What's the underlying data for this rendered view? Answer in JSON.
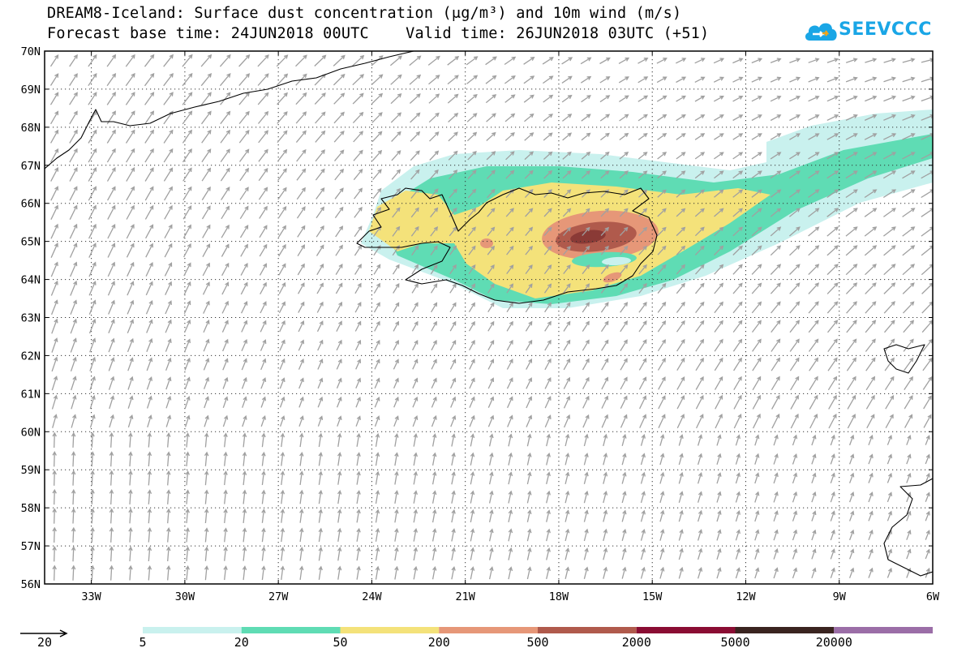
{
  "header": {
    "title_line1": "DREAM8-Iceland: Surface dust concentration (μg/m³) and 10m wind (m/s)",
    "title_line2": "Forecast base time: 24JUN2018 00UTC    Valid time: 26JUN2018 03UTC (+51)"
  },
  "logo": {
    "text": "SEEVCCC",
    "color": "#1aa6e6"
  },
  "map": {
    "lat_labels": [
      "70N",
      "69N",
      "68N",
      "67N",
      "66N",
      "65N",
      "64N",
      "63N",
      "62N",
      "61N",
      "60N",
      "59N",
      "58N",
      "57N",
      "56N"
    ],
    "lon_labels": [
      "33W",
      "30W",
      "27W",
      "24W",
      "21W",
      "18W",
      "15W",
      "12W",
      "9W",
      "6W"
    ],
    "lat_range": [
      56,
      70
    ],
    "lon_range": [
      -34.5,
      -6
    ],
    "grid": "dotted",
    "wind_arrow_color": "#a0a0a0",
    "coast_color": "#000000"
  },
  "legend": {
    "wind_reference_value": "20",
    "bins": [
      {
        "color": "#c9f1ee"
      },
      {
        "color": "#5fdcb4"
      },
      {
        "color": "#f4e27a"
      },
      {
        "color": "#e69778"
      },
      {
        "color": "#b05a4c"
      },
      {
        "color": "#8a0d33"
      },
      {
        "color": "#3a2420"
      },
      {
        "color": "#9b6ea7"
      }
    ],
    "labels": [
      "5",
      "20",
      "50",
      "200",
      "500",
      "2000",
      "5000",
      "20000"
    ]
  }
}
